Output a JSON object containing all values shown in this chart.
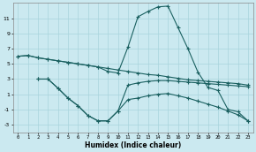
{
  "background_color": "#cbe9f0",
  "grid_color": "#a8d4dc",
  "line_color": "#1a6060",
  "xlabel": "Humidex (Indice chaleur)",
  "xlim": [
    -0.5,
    23.5
  ],
  "ylim": [
    -4.0,
    13.0
  ],
  "xticks": [
    0,
    1,
    2,
    3,
    4,
    5,
    6,
    7,
    8,
    9,
    10,
    11,
    12,
    13,
    14,
    15,
    16,
    17,
    18,
    19,
    20,
    21,
    22,
    23
  ],
  "yticks": [
    -3,
    -1,
    1,
    3,
    5,
    7,
    9,
    11
  ],
  "curves": [
    {
      "x": [
        0,
        1,
        2,
        3,
        4,
        5,
        6,
        7,
        8,
        9,
        10,
        11,
        12,
        13,
        14,
        15,
        16,
        17,
        18,
        19,
        20,
        21,
        22,
        23
      ],
      "y": [
        6.0,
        6.1,
        5.8,
        5.6,
        5.4,
        5.2,
        5.0,
        4.8,
        4.6,
        4.4,
        4.2,
        4.0,
        3.8,
        3.6,
        3.5,
        3.3,
        3.1,
        2.9,
        2.8,
        2.7,
        2.6,
        2.5,
        2.4,
        2.2
      ]
    },
    {
      "x": [
        0,
        1,
        2,
        3,
        4,
        5,
        6,
        7,
        8,
        9,
        10,
        11,
        12,
        13,
        14,
        15,
        16,
        17,
        18,
        19,
        20,
        21,
        22,
        23
      ],
      "y": [
        6.0,
        6.1,
        5.8,
        5.6,
        5.4,
        5.2,
        5.0,
        4.8,
        4.6,
        4.0,
        3.8,
        7.2,
        11.2,
        11.9,
        12.5,
        12.6,
        9.8,
        7.0,
        3.9,
        1.9,
        1.5,
        -1.0,
        -1.3,
        -2.5
      ]
    },
    {
      "x": [
        2,
        3,
        4,
        5,
        6,
        7,
        8,
        9,
        10,
        11,
        12,
        13,
        14,
        15,
        16,
        17,
        18,
        19,
        20,
        21,
        22,
        23
      ],
      "y": [
        3.0,
        3.0,
        1.8,
        0.5,
        -0.5,
        -1.8,
        -2.5,
        -2.5,
        -1.2,
        2.2,
        2.5,
        2.7,
        2.8,
        2.8,
        2.7,
        2.6,
        2.5,
        2.4,
        2.3,
        2.2,
        2.1,
        2.0
      ]
    },
    {
      "x": [
        2,
        3,
        4,
        5,
        6,
        7,
        8,
        9,
        10,
        11,
        12,
        13,
        14,
        15,
        16,
        17,
        18,
        19,
        20,
        21,
        22,
        23
      ],
      "y": [
        3.0,
        3.0,
        1.8,
        0.5,
        -0.5,
        -1.8,
        -2.5,
        -2.5,
        -1.2,
        0.3,
        0.5,
        0.8,
        1.0,
        1.1,
        0.8,
        0.5,
        0.1,
        -0.3,
        -0.7,
        -1.2,
        -1.7,
        -2.5
      ]
    }
  ]
}
